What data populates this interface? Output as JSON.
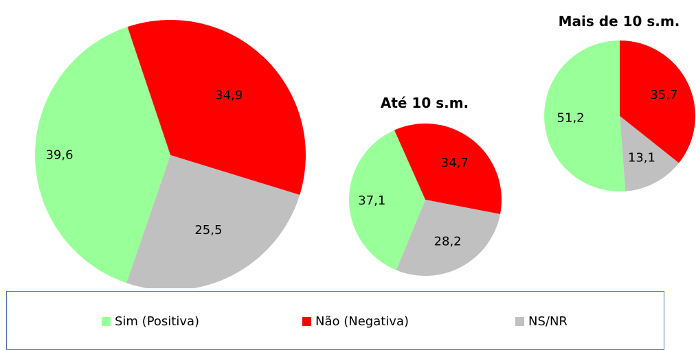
{
  "chart_data": [
    {
      "type": "pie",
      "title": "",
      "categories": [
        "Sim (Positiva)",
        "Não (Negativa)",
        "NS/NR"
      ],
      "values": [
        39.6,
        34.9,
        25.5
      ],
      "labels": [
        "39,6",
        "34,9",
        "25,5"
      ]
    },
    {
      "type": "pie",
      "title": "Até 10 s.m.",
      "categories": [
        "Sim (Positiva)",
        "Não (Negativa)",
        "NS/NR"
      ],
      "values": [
        37.1,
        34.7,
        28.2
      ],
      "labels": [
        "37,1",
        "34,7",
        "28,2"
      ]
    },
    {
      "type": "pie",
      "title": "Mais de 10 s.m.",
      "categories": [
        "Sim (Positiva)",
        "Não (Negativa)",
        "NS/NR"
      ],
      "values": [
        51.2,
        35.7,
        13.1
      ],
      "labels": [
        "51,2",
        "35,7",
        "13,1"
      ]
    }
  ],
  "legend": {
    "items": [
      {
        "label": "Sim (Positiva)",
        "color": "#99ff99"
      },
      {
        "label": "Não (Negativa)",
        "color": "#ff0000"
      },
      {
        "label": "NS/NR",
        "color": "#c0c0c0"
      }
    ]
  },
  "colors": {
    "positive": "#99ff99",
    "negative": "#ff0000",
    "unknown": "#c0c0c0",
    "legend_border": "#4a72b0"
  }
}
